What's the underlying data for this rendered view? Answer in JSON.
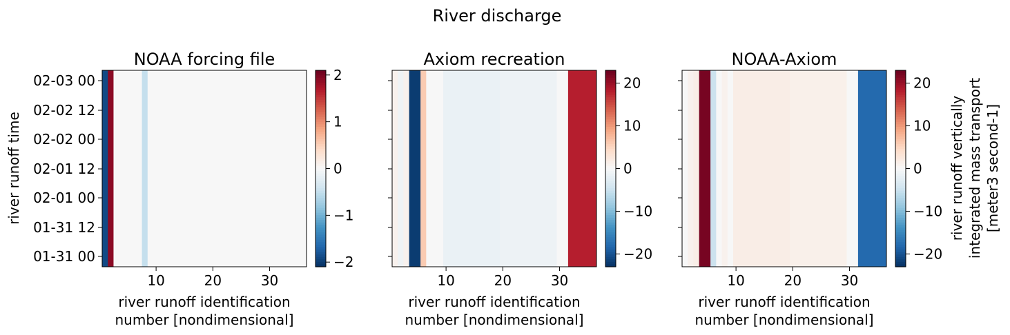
{
  "suptitle": "River discharge",
  "colors": {
    "rdbu": [
      "#053061",
      "#2166ac",
      "#4393c3",
      "#92c5de",
      "#d1e5f0",
      "#f7f7f7",
      "#fddbc7",
      "#f4a582",
      "#d6604d",
      "#b2182b",
      "#67001f"
    ]
  },
  "chart_data": [
    {
      "type": "heatmap",
      "title": "NOAA forcing file",
      "xlabel": [
        "river runoff identification",
        "number [nondimensional]"
      ],
      "ylabel": "river runoff time",
      "xlim": [
        0.5,
        36.5
      ],
      "xticks": [
        10,
        20,
        30
      ],
      "yticks": [
        "02-03 00",
        "02-02 12",
        "02-02 00",
        "02-01 12",
        "02-01 00",
        "01-31 12",
        "01-31 00"
      ],
      "color_range": [
        -2.1,
        2.1
      ],
      "colorbar_ticks": [
        2,
        1,
        0,
        -1,
        -2
      ],
      "colorbar_label": [],
      "columns": [
        {
          "from": 1,
          "to": 1,
          "value": -1.9
        },
        {
          "from": 2,
          "to": 2,
          "value": 1.9
        },
        {
          "from": 3,
          "to": 7,
          "value": 0
        },
        {
          "from": 8,
          "to": 8,
          "value": -0.5
        },
        {
          "from": 9,
          "to": 36,
          "value": 0
        }
      ]
    },
    {
      "type": "heatmap",
      "title": "Axiom recreation",
      "xlabel": [
        "river runoff identification",
        "number [nondimensional]"
      ],
      "ylabel": "",
      "xlim": [
        0.5,
        36.5
      ],
      "xticks": [
        10,
        20,
        30
      ],
      "yticks": [
        "",
        "",
        "",
        "",
        "",
        "",
        ""
      ],
      "color_range": [
        -23,
        23
      ],
      "colorbar_ticks": [
        20,
        10,
        0,
        -10,
        -20
      ],
      "colorbar_label": [],
      "columns": [
        {
          "from": 1,
          "to": 1,
          "value": 1
        },
        {
          "from": 2,
          "to": 2,
          "value": -1
        },
        {
          "from": 3,
          "to": 3,
          "value": 1
        },
        {
          "from": 4,
          "to": 5,
          "value": -22
        },
        {
          "from": 6,
          "to": 6,
          "value": 6
        },
        {
          "from": 7,
          "to": 9,
          "value": 0
        },
        {
          "from": 10,
          "to": 19,
          "value": -1.6
        },
        {
          "from": 20,
          "to": 29,
          "value": -1.2
        },
        {
          "from": 30,
          "to": 31,
          "value": 0
        },
        {
          "from": 32,
          "to": 36,
          "value": 18
        }
      ]
    },
    {
      "type": "heatmap",
      "title": "NOAA-Axiom",
      "xlabel": [
        "river runoff identification",
        "number [nondimensional]"
      ],
      "ylabel": "",
      "xlim": [
        0.5,
        36.5
      ],
      "xticks": [
        10,
        20,
        30
      ],
      "yticks": [
        "",
        "",
        "",
        "",
        "",
        "",
        ""
      ],
      "color_range": [
        -23,
        23
      ],
      "colorbar_ticks": [
        20,
        10,
        0,
        -10,
        -20
      ],
      "colorbar_label": [
        "river runoff vertically",
        "integrated mass transport",
        "[meter3 second-1]"
      ],
      "columns": [
        {
          "from": 1,
          "to": 1,
          "value": 0
        },
        {
          "from": 2,
          "to": 2,
          "value": 1
        },
        {
          "from": 3,
          "to": 3,
          "value": 1.5
        },
        {
          "from": 4,
          "to": 5,
          "value": 22
        },
        {
          "from": 6,
          "to": 6,
          "value": -5
        },
        {
          "from": 7,
          "to": 7,
          "value": 0
        },
        {
          "from": 8,
          "to": 8,
          "value": 1
        },
        {
          "from": 9,
          "to": 9,
          "value": 0
        },
        {
          "from": 10,
          "to": 19,
          "value": 1.6
        },
        {
          "from": 20,
          "to": 29,
          "value": 1.2
        },
        {
          "from": 30,
          "to": 31,
          "value": 0
        },
        {
          "from": 32,
          "to": 36,
          "value": -18
        }
      ]
    }
  ]
}
